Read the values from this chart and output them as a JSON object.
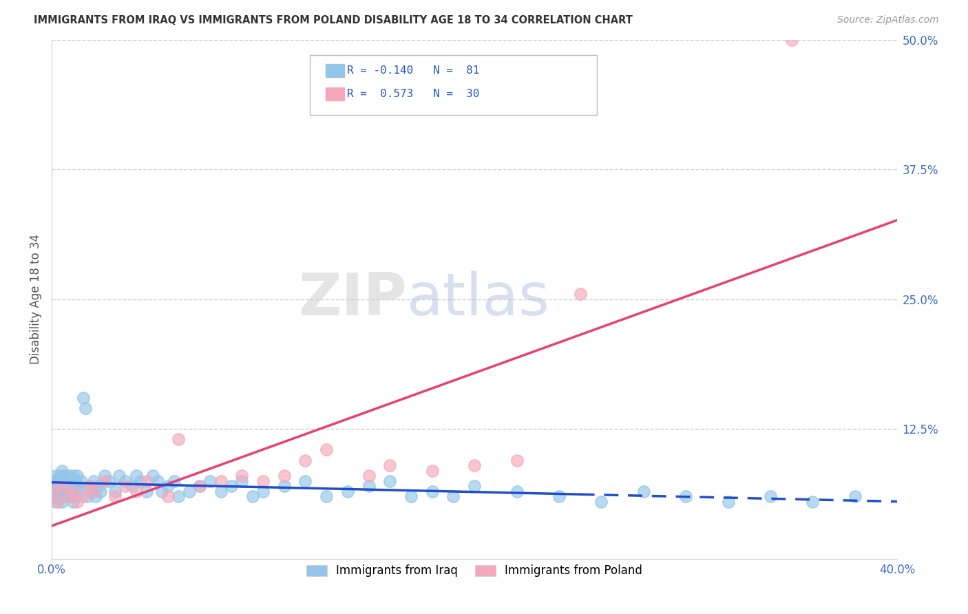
{
  "title": "IMMIGRANTS FROM IRAQ VS IMMIGRANTS FROM POLAND DISABILITY AGE 18 TO 34 CORRELATION CHART",
  "source": "Source: ZipAtlas.com",
  "ylabel": "Disability Age 18 to 34",
  "legend_label_iraq": "Immigrants from Iraq",
  "legend_label_poland": "Immigrants from Poland",
  "R_iraq": -0.14,
  "N_iraq": 81,
  "R_poland": 0.573,
  "N_poland": 30,
  "xlim": [
    0.0,
    0.4
  ],
  "ylim": [
    0.0,
    0.5
  ],
  "xticks": [
    0.0,
    0.1,
    0.2,
    0.3,
    0.4
  ],
  "yticks": [
    0.0,
    0.125,
    0.25,
    0.375,
    0.5
  ],
  "ytick_labels": [
    "",
    "12.5%",
    "25.0%",
    "37.5%",
    "50.0%"
  ],
  "color_iraq": "#92C5E8",
  "color_poland": "#F5A8BC",
  "color_trend_iraq": "#1F4FCC",
  "color_trend_poland": "#E84070",
  "background_color": "#FFFFFF",
  "iraq_x": [
    0.001,
    0.001,
    0.002,
    0.002,
    0.002,
    0.003,
    0.003,
    0.003,
    0.004,
    0.004,
    0.005,
    0.005,
    0.005,
    0.006,
    0.006,
    0.006,
    0.007,
    0.007,
    0.008,
    0.008,
    0.009,
    0.009,
    0.01,
    0.01,
    0.011,
    0.011,
    0.012,
    0.012,
    0.013,
    0.014,
    0.015,
    0.016,
    0.017,
    0.018,
    0.019,
    0.02,
    0.021,
    0.022,
    0.023,
    0.025,
    0.027,
    0.03,
    0.032,
    0.035,
    0.038,
    0.04,
    0.042,
    0.045,
    0.048,
    0.05,
    0.052,
    0.055,
    0.058,
    0.06,
    0.065,
    0.07,
    0.075,
    0.08,
    0.085,
    0.09,
    0.095,
    0.1,
    0.11,
    0.12,
    0.13,
    0.14,
    0.15,
    0.16,
    0.17,
    0.18,
    0.19,
    0.2,
    0.22,
    0.24,
    0.26,
    0.28,
    0.3,
    0.32,
    0.34,
    0.36,
    0.38
  ],
  "iraq_y": [
    0.06,
    0.075,
    0.065,
    0.08,
    0.055,
    0.07,
    0.075,
    0.06,
    0.065,
    0.08,
    0.055,
    0.075,
    0.085,
    0.06,
    0.07,
    0.08,
    0.065,
    0.075,
    0.06,
    0.08,
    0.065,
    0.075,
    0.055,
    0.08,
    0.06,
    0.075,
    0.065,
    0.08,
    0.07,
    0.075,
    0.155,
    0.145,
    0.06,
    0.07,
    0.065,
    0.075,
    0.06,
    0.07,
    0.065,
    0.08,
    0.075,
    0.065,
    0.08,
    0.075,
    0.07,
    0.08,
    0.075,
    0.065,
    0.08,
    0.075,
    0.065,
    0.07,
    0.075,
    0.06,
    0.065,
    0.07,
    0.075,
    0.065,
    0.07,
    0.075,
    0.06,
    0.065,
    0.07,
    0.075,
    0.06,
    0.065,
    0.07,
    0.075,
    0.06,
    0.065,
    0.06,
    0.07,
    0.065,
    0.06,
    0.055,
    0.065,
    0.06,
    0.055,
    0.06,
    0.055,
    0.06
  ],
  "poland_x": [
    0.001,
    0.003,
    0.005,
    0.008,
    0.01,
    0.012,
    0.015,
    0.018,
    0.02,
    0.025,
    0.03,
    0.035,
    0.04,
    0.045,
    0.055,
    0.06,
    0.07,
    0.08,
    0.09,
    0.1,
    0.11,
    0.12,
    0.13,
    0.15,
    0.16,
    0.18,
    0.2,
    0.22,
    0.25,
    0.35
  ],
  "poland_y": [
    0.065,
    0.055,
    0.07,
    0.06,
    0.065,
    0.055,
    0.06,
    0.07,
    0.065,
    0.075,
    0.06,
    0.07,
    0.065,
    0.075,
    0.06,
    0.115,
    0.07,
    0.075,
    0.08,
    0.075,
    0.08,
    0.095,
    0.105,
    0.08,
    0.09,
    0.085,
    0.09,
    0.095,
    0.255,
    0.5
  ],
  "trend_iraq_x_solid_end": 0.25,
  "trend_poland_x_start": 0.0,
  "trend_poland_x_end": 0.4
}
